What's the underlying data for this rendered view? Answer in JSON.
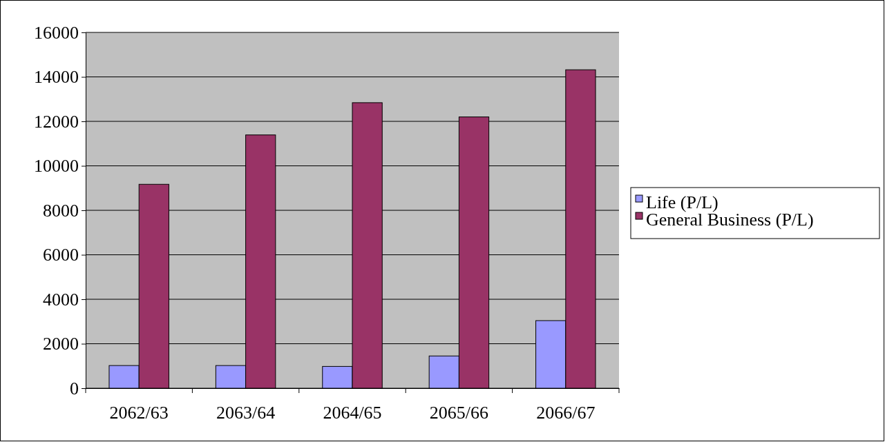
{
  "chart_data": {
    "type": "bar",
    "categories": [
      "2062/63",
      "2063/64",
      "2064/65",
      "2065/66",
      "2066/67"
    ],
    "series": [
      {
        "name": "Life (P/L)",
        "color": "#9999ff",
        "values": [
          1020,
          1020,
          980,
          1450,
          3040
        ]
      },
      {
        "name": " General Business (P/L)",
        "color": "#993366",
        "values": [
          9170,
          11390,
          12840,
          12200,
          14320
        ]
      }
    ],
    "ylim": [
      0,
      16000
    ],
    "yticks": [
      0,
      2000,
      4000,
      6000,
      8000,
      10000,
      12000,
      14000,
      16000
    ],
    "grid": "y",
    "legend": "right"
  }
}
